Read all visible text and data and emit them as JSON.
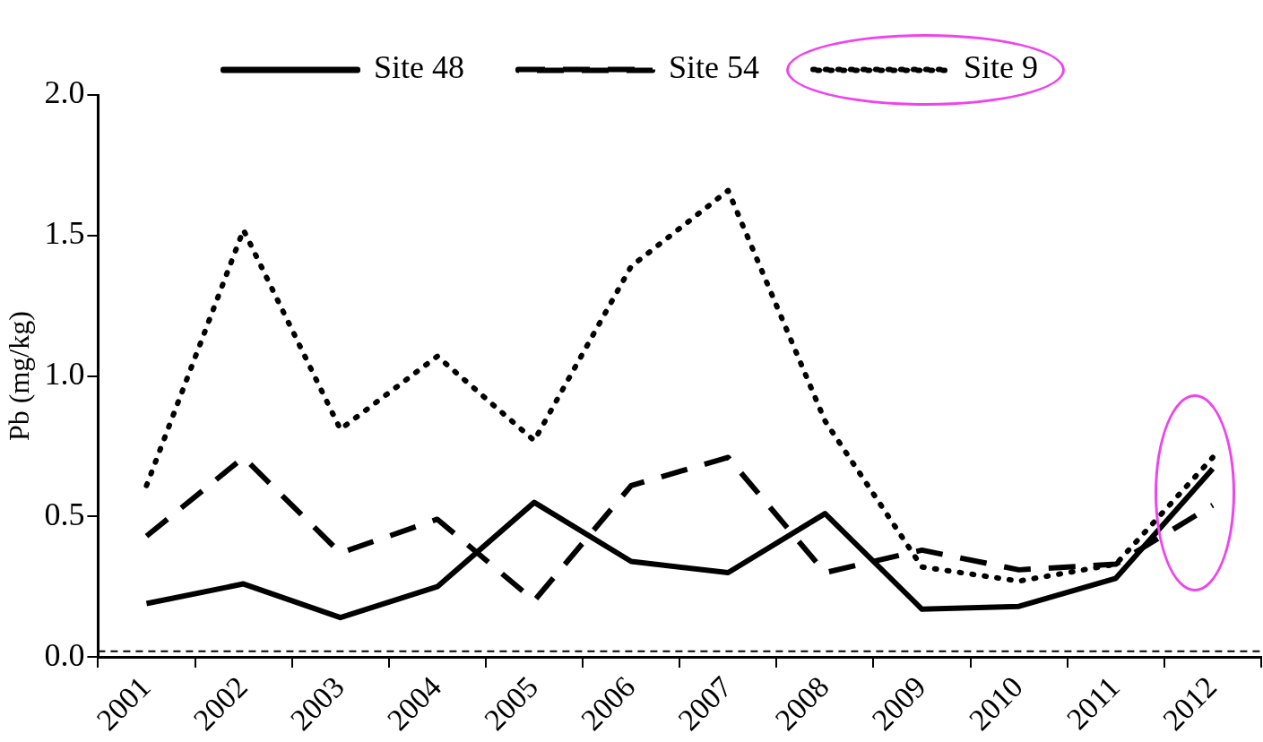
{
  "chart_data": {
    "type": "line",
    "ylabel": "Pb (mg/kg)",
    "categories": [
      "2001",
      "2002",
      "2003",
      "2004",
      "2005",
      "2006",
      "2007",
      "2008",
      "2009",
      "2010",
      "2011",
      "2012"
    ],
    "series": [
      {
        "name": "Site 48",
        "color": "#000000",
        "line_style": "solid",
        "values": [
          0.19,
          0.26,
          0.14,
          0.25,
          0.55,
          0.34,
          0.3,
          0.51,
          0.17,
          0.18,
          0.28,
          0.67
        ]
      },
      {
        "name": "Site 54",
        "color": "#000000",
        "line_style": "dashed",
        "values": [
          0.43,
          0.71,
          0.37,
          0.49,
          0.2,
          0.61,
          0.71,
          0.3,
          0.38,
          0.31,
          0.33,
          0.54
        ]
      },
      {
        "name": "Site 9",
        "color": "#000000",
        "line_style": "dotted",
        "values": [
          0.61,
          1.52,
          0.81,
          1.07,
          0.77,
          1.39,
          1.66,
          0.84,
          0.32,
          0.27,
          0.33,
          0.71
        ]
      }
    ],
    "ylim": [
      0,
      2.0
    ],
    "yticks": [
      {
        "value": 0,
        "label": "0.0"
      },
      {
        "value": 0.5,
        "label": "0.5"
      },
      {
        "value": 1,
        "label": "1.0"
      },
      {
        "value": 1.5,
        "label": "1.5"
      },
      {
        "value": 2,
        "label": "2.0"
      }
    ],
    "ref_lines": [
      {
        "axis": "y",
        "value": 0.02,
        "color": "#000000",
        "line_style": "dashed"
      }
    ],
    "grid": false,
    "legend": "top",
    "marker": "none"
  }
}
